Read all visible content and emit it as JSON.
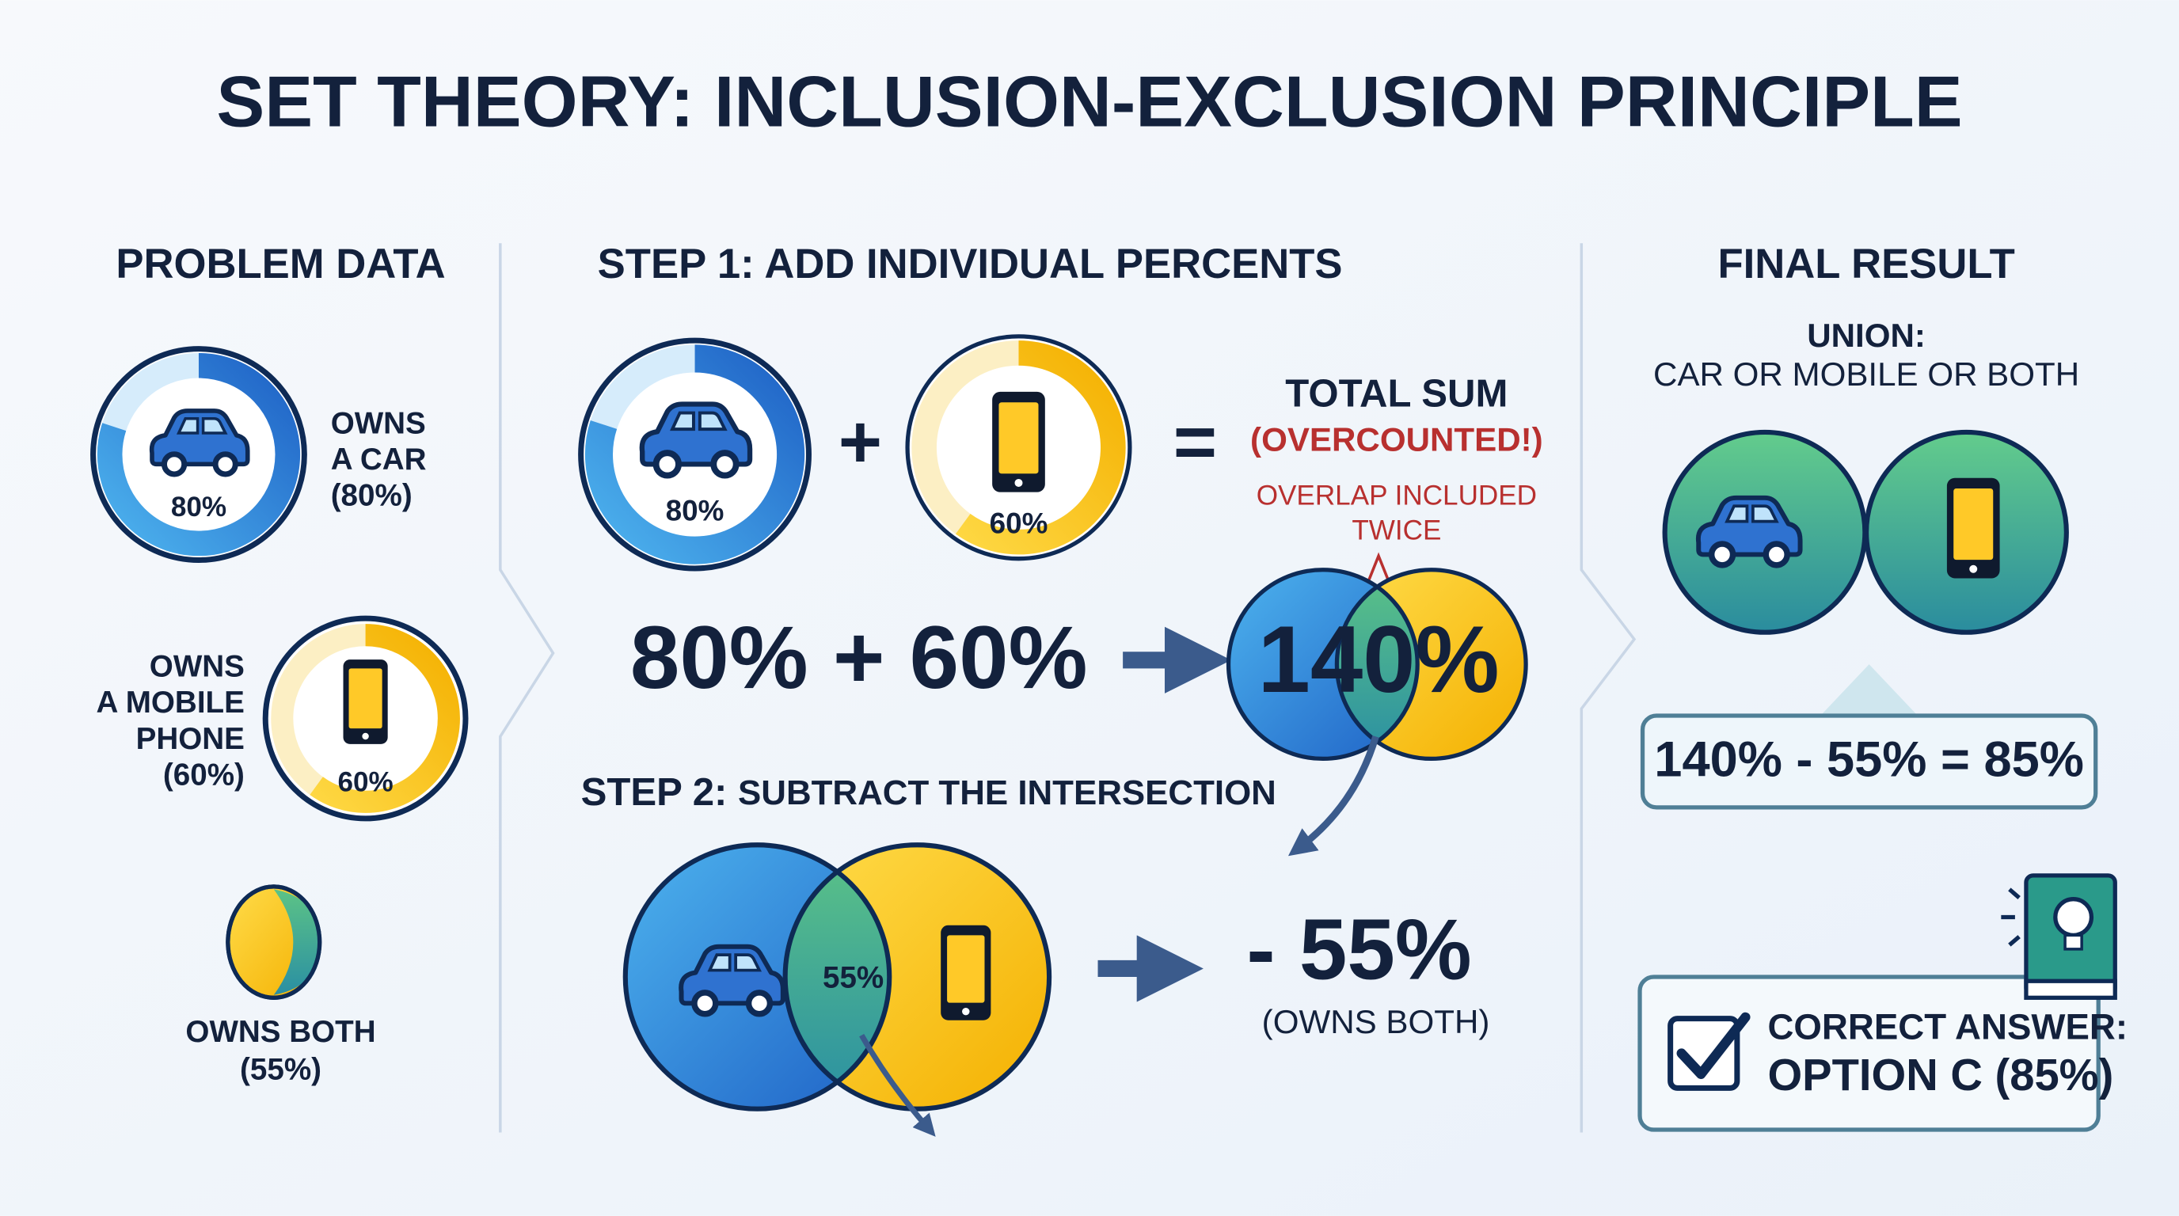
{
  "title": "SET THEORY: INCLUSION-EXCLUSION PRINCIPLE",
  "problem": {
    "heading": "PROBLEM DATA",
    "car": {
      "value": 80,
      "label": "80%",
      "caption": [
        "OWNS",
        "A CAR",
        "(80%)"
      ]
    },
    "phone": {
      "value": 60,
      "label": "60%",
      "caption": [
        "OWNS",
        "A MOBILE",
        "PHONE",
        "(60%)"
      ]
    },
    "both": {
      "caption": [
        "OWNS BOTH",
        "(55%)"
      ]
    }
  },
  "step1": {
    "heading": "STEP 1: ADD INDIVIDUAL PERCENTS",
    "car": {
      "value": 80,
      "label": "80%"
    },
    "phone": {
      "value": 60,
      "label": "60%"
    },
    "plus": "+",
    "equals": "=",
    "total_heading": "TOTAL SUM",
    "overcounted": "(OVERCOUNTED!)",
    "note": [
      "OVERLAP INCLUDED",
      "TWICE"
    ],
    "sum_expression": "80% + 60%",
    "total": "140%"
  },
  "step2": {
    "heading_lead": "STEP 2:",
    "heading_rest": "SUBTRACT THE INTERSECTION",
    "overlap_label": "55%",
    "subtract": "- 55%",
    "subtract_note": "(OWNS BOTH)"
  },
  "result": {
    "heading": "FINAL RESULT",
    "union_title": "UNION:",
    "union_subtitle": "CAR OR MOBILE OR BOTH",
    "equation": "140% - 55% = 85%",
    "answer_title": "CORRECT ANSWER:",
    "answer": "OPTION C (85%)"
  }
}
